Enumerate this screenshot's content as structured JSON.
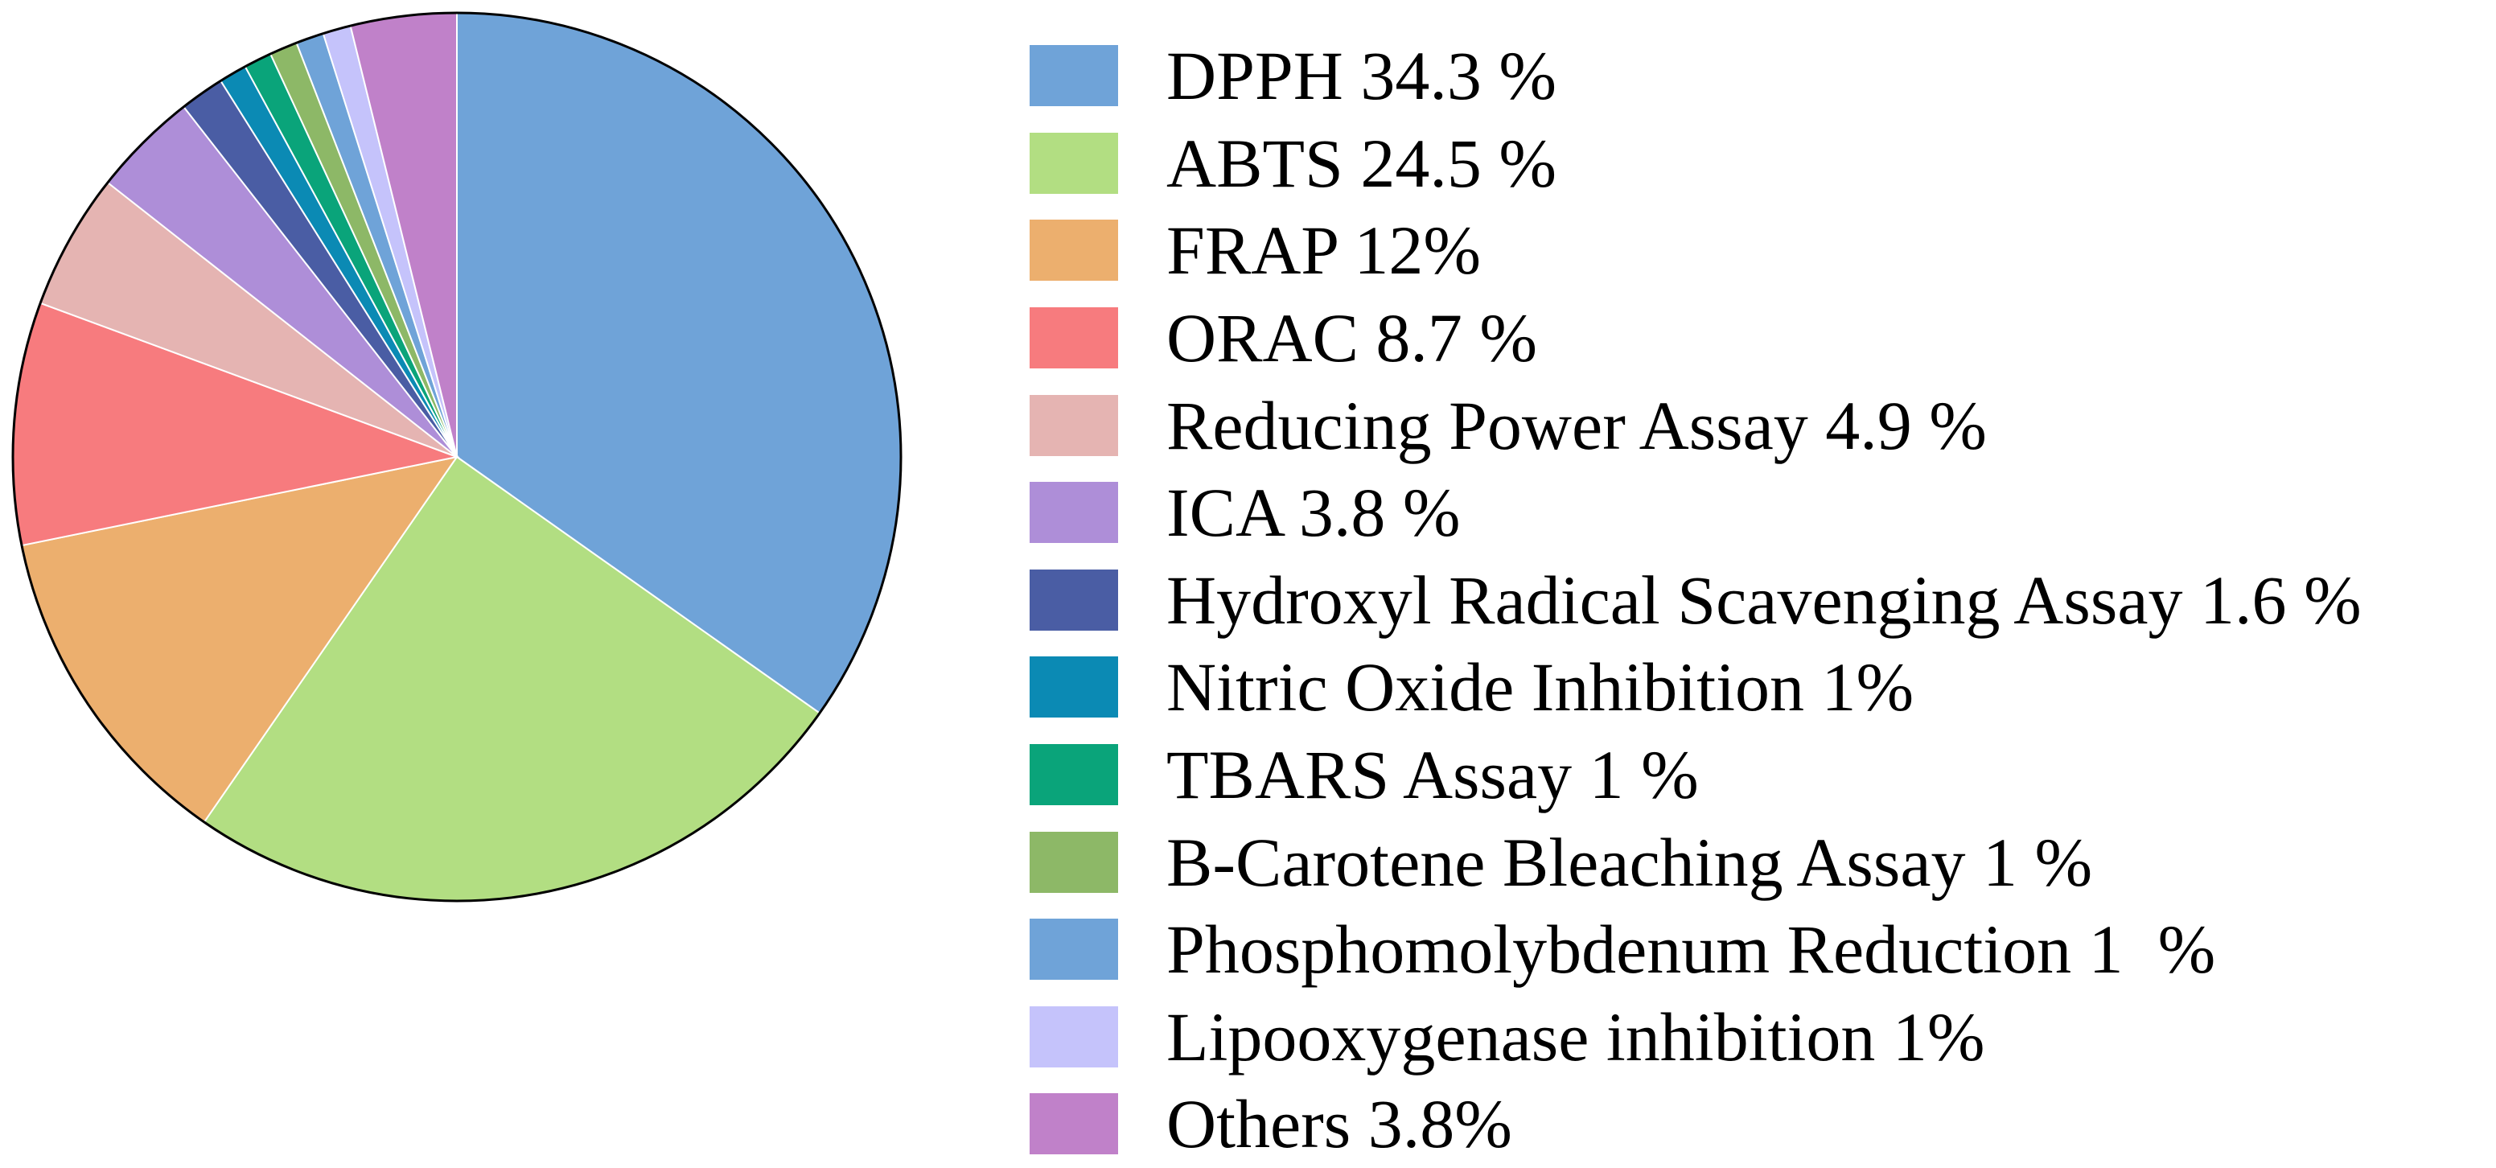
{
  "chart_data": {
    "type": "pie",
    "slices": [
      {
        "label": "DPPH 34.3 %",
        "value": 34.3,
        "color": "#6fa3d8"
      },
      {
        "label": "ABTS 24.5 %",
        "value": 24.5,
        "color": "#b2de82"
      },
      {
        "label": "FRAP 12%",
        "value": 12,
        "color": "#ecaf6e"
      },
      {
        "label": "ORAC 8.7 %",
        "value": 8.7,
        "color": "#f77b7e"
      },
      {
        "label": "Reducing Power Assay 4.9 %",
        "value": 4.9,
        "color": "#e5b4b2"
      },
      {
        "label": "ICA 3.8 %",
        "value": 3.8,
        "color": "#ae8ed8"
      },
      {
        "label": "Hydroxyl Radical Scavenging Assay 1.6 %",
        "value": 1.6,
        "color": "#4a5da4"
      },
      {
        "label": "Nitric Oxide Inhibition 1%",
        "value": 1,
        "color": "#0b8ab4"
      },
      {
        "label": "TBARS Assay 1 %",
        "value": 1,
        "color": "#0aa47a"
      },
      {
        "label": "B-Carotene Bleaching Assay 1 %",
        "value": 1,
        "color": "#8db867"
      },
      {
        "label": "Phosphomolybdenum Reduction 1  %",
        "value": 1,
        "color": "#6fa3d8"
      },
      {
        "label": "Lipooxygenase inhibition 1%",
        "value": 1,
        "color": "#c5c3fb"
      },
      {
        "label": "Others 3.8%",
        "value": 3.8,
        "color": "#c081c9"
      }
    ],
    "start_angle_deg": 0,
    "direction": "clockwise",
    "legend_position": "right"
  }
}
